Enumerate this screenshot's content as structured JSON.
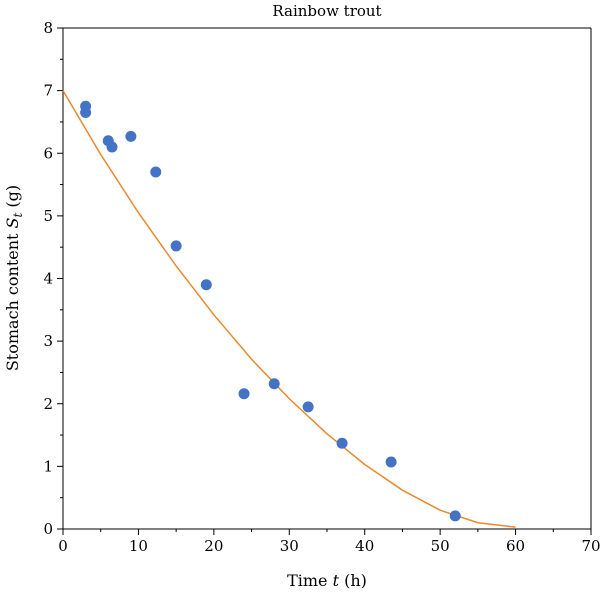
{
  "chart_data": {
    "type": "scatter",
    "title": "Rainbow trout",
    "xlabel": {
      "pre": "Time ",
      "var": "t",
      "post": " (h)"
    },
    "ylabel": {
      "pre": "Stomach content ",
      "var": "S",
      "sub": "t",
      "post": " (g)"
    },
    "xlim": [
      0,
      70
    ],
    "ylim": [
      0,
      8
    ],
    "xticks": [
      0,
      10,
      20,
      30,
      40,
      50,
      60,
      70
    ],
    "yticks": [
      0,
      1,
      2,
      3,
      4,
      5,
      6,
      7,
      8
    ],
    "grid": false,
    "legend": "none",
    "series": [
      {
        "kind": "points",
        "color": "#4472c4",
        "x": [
          3,
          3,
          6,
          6.5,
          9,
          12.3,
          15,
          19,
          24,
          28,
          32.5,
          37,
          43.5,
          52
        ],
        "y": [
          6.75,
          6.65,
          6.2,
          6.1,
          6.27,
          5.7,
          4.52,
          3.9,
          2.16,
          2.32,
          1.95,
          1.37,
          1.07,
          0.21
        ]
      },
      {
        "kind": "line",
        "color": "#e8892e",
        "x": [
          0,
          5,
          10,
          15,
          20,
          25,
          30,
          35,
          40,
          45,
          50,
          55,
          60
        ],
        "y": [
          7.0,
          5.98,
          5.05,
          4.2,
          3.42,
          2.71,
          2.08,
          1.52,
          1.03,
          0.62,
          0.3,
          0.1,
          0.03
        ]
      }
    ]
  }
}
